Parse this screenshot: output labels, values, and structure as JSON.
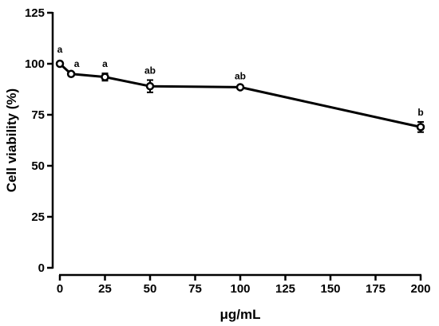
{
  "chart_data": {
    "type": "line",
    "title": "",
    "xlabel": "μg/mL",
    "ylabel": "Cell viability (%)",
    "xlim": [
      0,
      200
    ],
    "ylim": [
      0,
      125
    ],
    "x_ticks": [
      0,
      25,
      50,
      75,
      100,
      125,
      150,
      175,
      200
    ],
    "y_ticks": [
      0,
      25,
      50,
      75,
      100,
      125
    ],
    "grid": false,
    "legend": "none",
    "series": [
      {
        "x": [
          0,
          6.25,
          25,
          50,
          100,
          200
        ],
        "y": [
          100,
          95,
          93.5,
          89,
          88.5,
          69
        ],
        "error": [
          0.5,
          0.8,
          1.8,
          3.0,
          0.8,
          2.5
        ],
        "point_labels": [
          "a",
          "a",
          "a",
          "ab",
          "ab",
          "b"
        ]
      }
    ],
    "colors": {
      "line": "#000000",
      "marker_fill": "#ffffff",
      "axis": "#000000"
    }
  }
}
